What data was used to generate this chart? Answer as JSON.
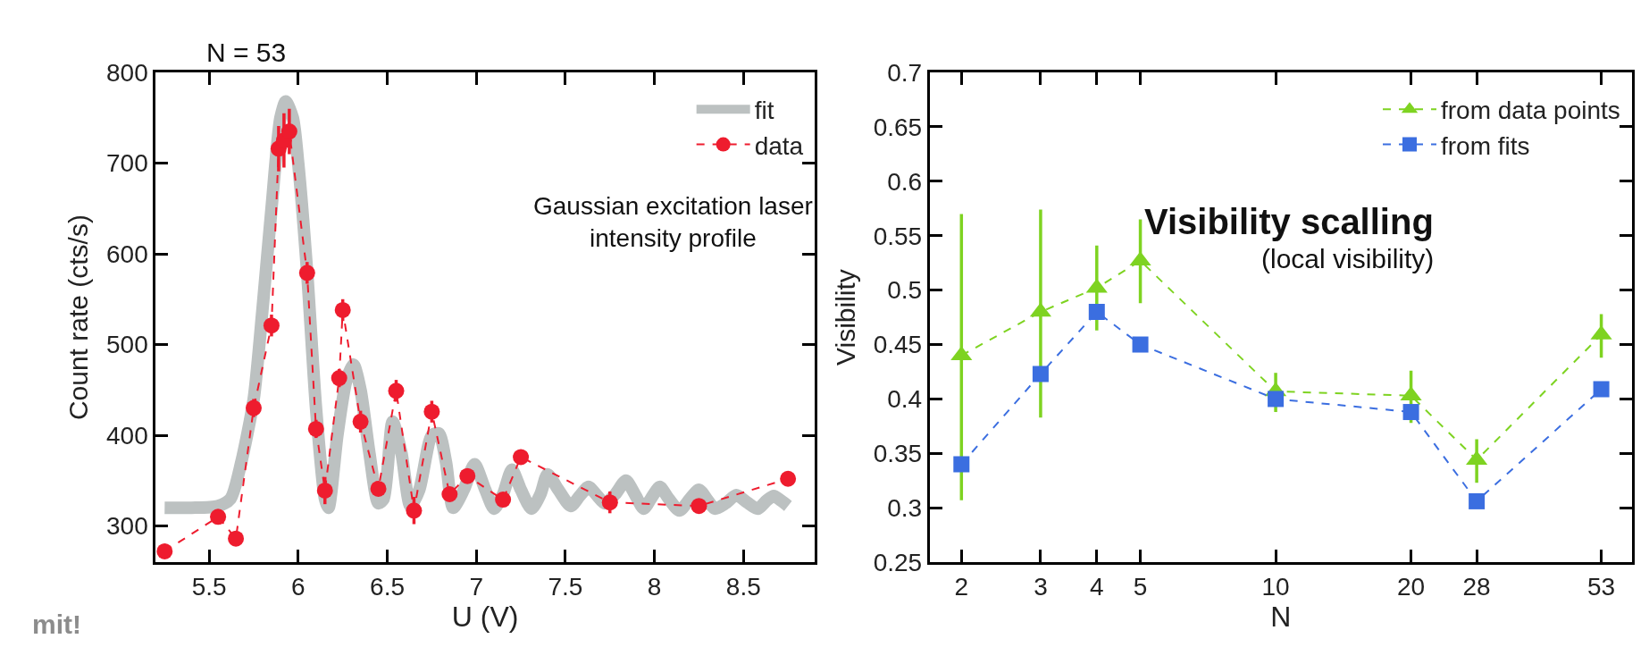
{
  "chart_data": [
    {
      "type": "line",
      "title": "N = 53",
      "xlabel": "U (V)",
      "ylabel": "Count rate (cts/s)",
      "xlim": [
        5.2,
        8.9
      ],
      "ylim": [
        260,
        800
      ],
      "xticks": [
        5.5,
        6,
        6.5,
        7,
        7.5,
        8,
        8.5
      ],
      "yticks": [
        300,
        400,
        500,
        600,
        700,
        800
      ],
      "legend": "top right",
      "annotations": [
        "Gaussian excitation laser\nintensity profile",
        "mit!"
      ],
      "series": [
        {
          "name": "fit",
          "color": "#bcc1c1",
          "marker": "none",
          "line_style": "solid",
          "x": [
            5.25,
            5.4,
            5.55,
            5.62,
            5.68,
            5.75,
            5.8,
            5.85,
            5.9,
            5.93,
            5.97,
            6.0,
            6.05,
            6.1,
            6.15,
            6.17,
            6.22,
            6.27,
            6.31,
            6.35,
            6.4,
            6.45,
            6.48,
            6.53,
            6.58,
            6.63,
            6.68,
            6.75,
            6.79,
            6.83,
            6.87,
            6.93,
            6.99,
            7.05,
            7.1,
            7.15,
            7.2,
            7.25,
            7.31,
            7.36,
            7.4,
            7.46,
            7.53,
            7.58,
            7.63,
            7.68,
            7.72,
            7.78,
            7.84,
            7.89,
            7.94,
            7.98,
            8.03,
            8.08,
            8.14,
            8.2,
            8.25,
            8.3,
            8.34,
            8.4,
            8.46,
            8.52,
            8.58,
            8.63,
            8.67,
            8.71,
            8.75
          ],
          "values": [
            320,
            320,
            322,
            330,
            370,
            440,
            540,
            650,
            750,
            768,
            750,
            700,
            580,
            430,
            330,
            320,
            400,
            460,
            478,
            450,
            380,
            325,
            330,
            415,
            380,
            322,
            340,
            400,
            402,
            370,
            320,
            340,
            368,
            340,
            319,
            335,
            362,
            340,
            319,
            335,
            357,
            340,
            322,
            333,
            343,
            333,
            325,
            335,
            350,
            335,
            319,
            330,
            343,
            330,
            317,
            330,
            340,
            328,
            319,
            325,
            334,
            326,
            319,
            328,
            333,
            328,
            322
          ]
        },
        {
          "name": "data",
          "color": "#ee1c2e",
          "marker": "circle",
          "line_style": "dashed",
          "x": [
            5.25,
            5.55,
            5.65,
            5.75,
            5.85,
            5.89,
            5.92,
            5.95,
            6.05,
            6.1,
            6.15,
            6.23,
            6.25,
            6.35,
            6.45,
            6.55,
            6.65,
            6.75,
            6.85,
            6.95,
            7.15,
            7.25,
            7.75,
            8.25,
            8.75
          ],
          "values": [
            272,
            310,
            286,
            430,
            521,
            716,
            725,
            735,
            579,
            407,
            339,
            463,
            538,
            415,
            341,
            449,
            317,
            426,
            335,
            355,
            329,
            376,
            326,
            322,
            352
          ],
          "errors": [
            8,
            8,
            8,
            10,
            12,
            25,
            30,
            25,
            12,
            10,
            15,
            10,
            12,
            12,
            8,
            12,
            15,
            12,
            8,
            8,
            8,
            8,
            12,
            8,
            8
          ]
        }
      ]
    },
    {
      "type": "line",
      "xlabel": "N",
      "ylabel": "Visibility",
      "log": "x",
      "xlim": [
        1.7,
        62
      ],
      "ylim": [
        0.25,
        0.7
      ],
      "xticks": [
        2,
        3,
        4,
        5,
        10,
        20,
        28,
        53
      ],
      "yticks": [
        0.25,
        0.3,
        0.35,
        0.4,
        0.45,
        0.5,
        0.55,
        0.6,
        0.65,
        0.7
      ],
      "legend": "top right",
      "annotations": [
        "Visibility scalling",
        "(local visibility)"
      ],
      "series": [
        {
          "name": "from data points",
          "color": "#7ed321",
          "marker": "triangle",
          "line_style": "dashed",
          "x": [
            2,
            3,
            4,
            5,
            10,
            20,
            28,
            53
          ],
          "values": [
            0.44,
            0.48,
            0.502,
            0.527,
            0.407,
            0.403,
            0.344,
            0.459
          ],
          "errors": [
            [
              0.307,
              0.57
            ],
            [
              0.383,
              0.574
            ],
            [
              0.463,
              0.541
            ],
            [
              0.488,
              0.565
            ],
            [
              0.388,
              0.424
            ],
            [
              0.378,
              0.426
            ],
            [
              0.323,
              0.363
            ],
            [
              0.438,
              0.478
            ]
          ]
        },
        {
          "name": "from fits",
          "color": "#3b6ee0",
          "marker": "square",
          "line_style": "dashed",
          "x": [
            2,
            3,
            4,
            5,
            10,
            20,
            28,
            53
          ],
          "values": [
            0.34,
            0.423,
            0.48,
            0.45,
            0.4,
            0.388,
            0.306,
            0.409
          ]
        }
      ]
    }
  ]
}
